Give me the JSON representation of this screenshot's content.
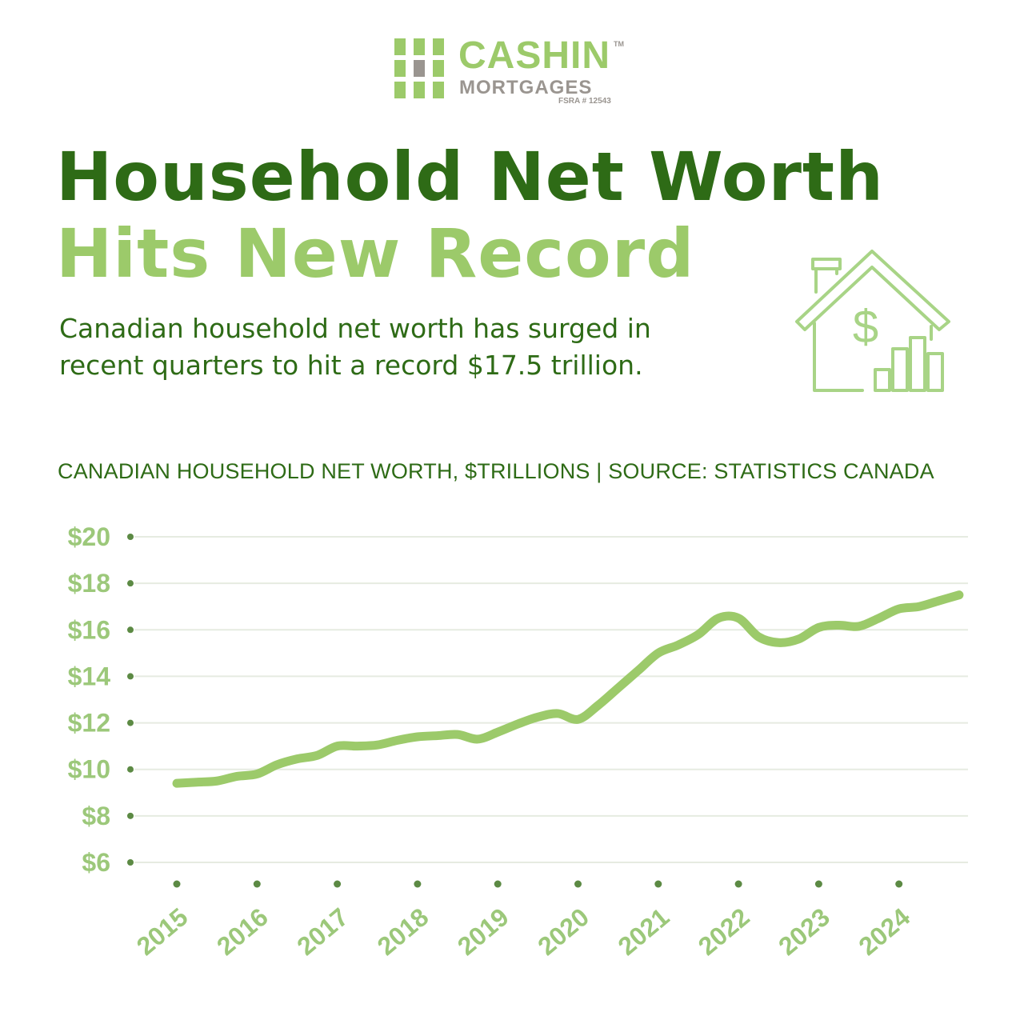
{
  "brand": {
    "name": "CASHIN",
    "trademark": "TM",
    "subname": "MORTGAGES",
    "license": "FSRA # 12543",
    "colors": {
      "dark_green": "#2e6b16",
      "light_green": "#9cca6a",
      "gray": "#9a9590"
    }
  },
  "headline": {
    "line1": "Household Net Worth",
    "line2": "Hits New Record"
  },
  "subtitle": "Canadian household net worth has surged in recent quarters to hit a record $17.5 trillion.",
  "icon": "house-dollar-bar-chart-icon",
  "source_line": "CANADIAN HOUSEHOLD NET WORTH, $TRILLIONS | SOURCE: STATISTICS CANADA",
  "chart_data": {
    "type": "line",
    "title": "CANADIAN HOUSEHOLD NET WORTH, $TRILLIONS | SOURCE: STATISTICS CANADA",
    "xlabel": "",
    "ylabel": "",
    "ylim": [
      6,
      20
    ],
    "xlim": [
      2015,
      2025
    ],
    "y_ticks": [
      "$20",
      "$18",
      "$16",
      "$14",
      "$12",
      "$10",
      "$8",
      "$6"
    ],
    "y_tick_values": [
      20,
      18,
      16,
      14,
      12,
      10,
      8,
      6
    ],
    "x_ticks": [
      "2015",
      "2016",
      "2017",
      "2018",
      "2019",
      "2020",
      "2021",
      "2022",
      "2023",
      "2024"
    ],
    "x_tick_values": [
      2015,
      2016,
      2017,
      2018,
      2019,
      2020,
      2021,
      2022,
      2023,
      2024
    ],
    "grid": true,
    "line_color": "#9cca6a",
    "series": [
      {
        "x": [
          2015.0,
          2015.25,
          2015.5,
          2015.75,
          2016.0,
          2016.25,
          2016.5,
          2016.75,
          2017.0,
          2017.25,
          2017.5,
          2017.75,
          2018.0,
          2018.25,
          2018.5,
          2018.75,
          2019.0,
          2019.25,
          2019.5,
          2019.75,
          2020.0,
          2020.25,
          2020.5,
          2020.75,
          2021.0,
          2021.25,
          2021.5,
          2021.75,
          2022.0,
          2022.25,
          2022.5,
          2022.75,
          2023.0,
          2023.25,
          2023.5,
          2023.75,
          2024.0,
          2024.25,
          2024.5,
          2024.75
        ],
        "values": [
          9.4,
          9.45,
          9.5,
          9.7,
          9.8,
          10.2,
          10.45,
          10.6,
          11.0,
          11.0,
          11.05,
          11.25,
          11.4,
          11.45,
          11.5,
          11.3,
          11.6,
          11.95,
          12.25,
          12.4,
          12.15,
          12.75,
          13.5,
          14.25,
          15.0,
          15.35,
          15.8,
          16.5,
          16.5,
          15.7,
          15.45,
          15.6,
          16.1,
          16.2,
          16.15,
          16.5,
          16.9,
          17.0,
          17.25,
          17.5
        ]
      }
    ]
  }
}
